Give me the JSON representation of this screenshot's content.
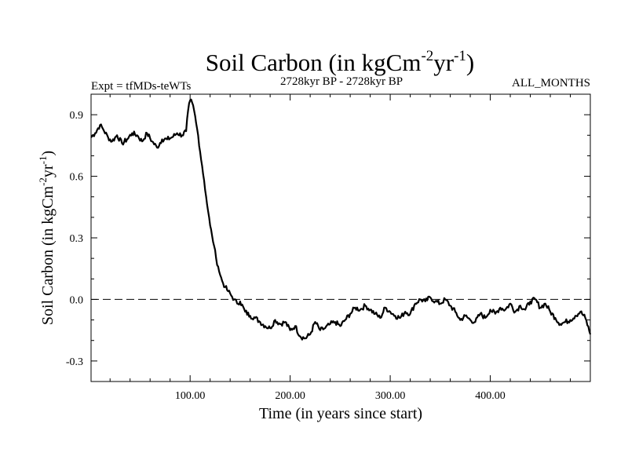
{
  "chart_data": {
    "type": "line",
    "title": "Soil Carbon (in kgCm",
    "title_sup1": "-2",
    "title_mid": "yr",
    "title_sup2": "-1",
    "title_end": ")",
    "subtitle_left": "Expt = tfMDs-teWTs",
    "subtitle_center": "2728kyr BP - 2728kyr BP",
    "subtitle_right": "ALL_MONTHS",
    "xlabel": "Time (in years since start)",
    "ylabel_parts": [
      "Soil Carbon (in kgCm",
      "-2",
      "yr",
      "-1",
      ")"
    ],
    "xlim": [
      1,
      500
    ],
    "ylim": [
      -0.4,
      1.0
    ],
    "x_ticks": [
      100,
      200,
      300,
      400
    ],
    "x_tick_labels": [
      "100.00",
      "200.00",
      "300.00",
      "400.00"
    ],
    "y_ticks": [
      -0.3,
      0.0,
      0.3,
      0.6,
      0.9
    ],
    "y_tick_labels": [
      "-0.3",
      "0.0",
      "0.3",
      "0.6",
      "0.9"
    ],
    "reference_line": 0.0,
    "series": [
      {
        "name": "soil_carbon",
        "x": [
          1,
          5,
          10,
          13,
          18,
          22,
          27,
          32,
          37,
          42,
          47,
          52,
          57,
          62,
          67,
          72,
          77,
          82,
          87,
          92,
          96,
          98,
          100,
          102,
          104,
          106,
          108,
          110,
          112,
          114,
          116,
          118,
          120,
          122,
          124,
          126,
          128,
          130,
          132,
          135,
          138,
          141,
          144,
          147,
          150,
          155,
          160,
          165,
          170,
          175,
          180,
          185,
          190,
          195,
          200,
          205,
          210,
          215,
          220,
          225,
          230,
          235,
          240,
          245,
          250,
          255,
          260,
          265,
          270,
          275,
          280,
          285,
          290,
          295,
          300,
          305,
          310,
          315,
          320,
          325,
          330,
          335,
          340,
          345,
          350,
          355,
          360,
          365,
          370,
          375,
          380,
          385,
          390,
          395,
          400,
          405,
          410,
          415,
          420,
          425,
          430,
          435,
          440,
          445,
          450,
          455,
          460,
          465,
          470,
          475,
          480,
          485,
          490,
          495,
          500
        ],
        "values": [
          0.79,
          0.81,
          0.85,
          0.83,
          0.79,
          0.77,
          0.8,
          0.76,
          0.78,
          0.81,
          0.8,
          0.77,
          0.81,
          0.77,
          0.74,
          0.78,
          0.78,
          0.79,
          0.81,
          0.8,
          0.82,
          0.92,
          0.97,
          0.96,
          0.92,
          0.86,
          0.8,
          0.72,
          0.65,
          0.58,
          0.5,
          0.43,
          0.36,
          0.31,
          0.26,
          0.2,
          0.16,
          0.12,
          0.09,
          0.06,
          0.04,
          0.02,
          0.0,
          -0.02,
          -0.01,
          -0.06,
          -0.08,
          -0.09,
          -0.11,
          -0.13,
          -0.14,
          -0.1,
          -0.12,
          -0.11,
          -0.15,
          -0.13,
          -0.18,
          -0.19,
          -0.17,
          -0.11,
          -0.15,
          -0.14,
          -0.12,
          -0.11,
          -0.13,
          -0.1,
          -0.07,
          -0.04,
          -0.05,
          -0.03,
          -0.05,
          -0.07,
          -0.09,
          -0.04,
          -0.06,
          -0.08,
          -0.09,
          -0.06,
          -0.07,
          -0.02,
          0.0,
          -0.01,
          0.01,
          -0.01,
          -0.02,
          0.0,
          -0.03,
          -0.06,
          -0.1,
          -0.08,
          -0.1,
          -0.11,
          -0.07,
          -0.09,
          -0.05,
          -0.07,
          -0.04,
          -0.05,
          -0.02,
          -0.06,
          -0.03,
          -0.05,
          -0.01,
          0.0,
          -0.04,
          -0.02,
          -0.06,
          -0.09,
          -0.12,
          -0.11,
          -0.1,
          -0.08,
          -0.06,
          -0.09,
          -0.17
        ]
      }
    ]
  }
}
